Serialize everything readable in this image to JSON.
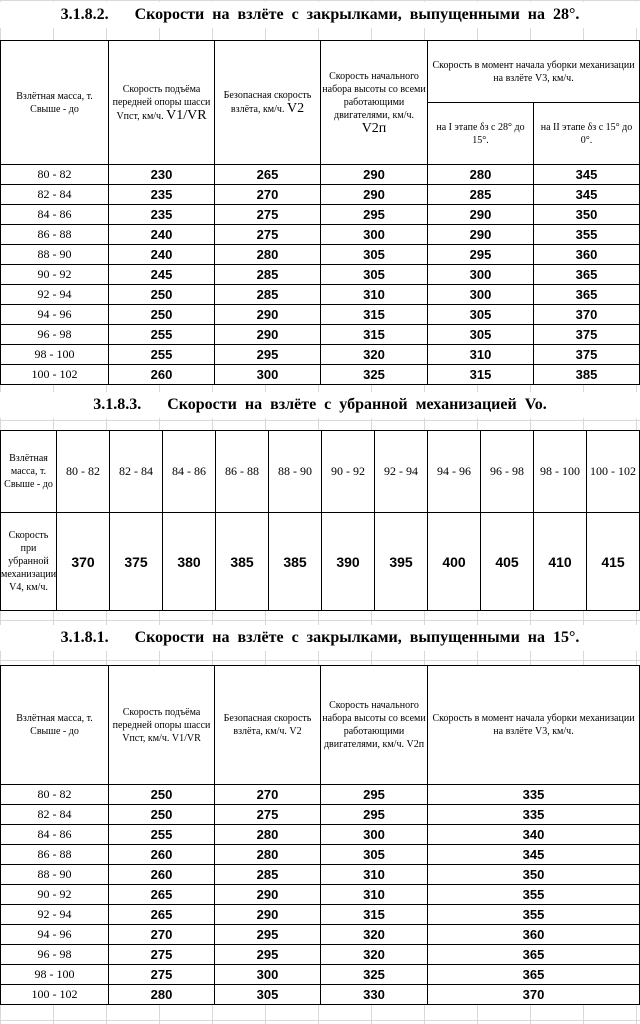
{
  "section1": {
    "number": "3.1.8.2.",
    "title": "Скорости на взлёте с закрылками, выпущенными на 28°.",
    "headers": {
      "mass": "Взлётная масса, т. Свыше - до",
      "v1": "Скорость подъёма передней опоры шасси Vпст, км/ч.",
      "v1_sym": "V1/VR",
      "v2": "Безопасная скорость взлёта, км/ч.",
      "v2_sym": "V2",
      "v2p": "Скорость начального набора высоты со всеми работающими двигателями, км/ч.",
      "v2p_sym": "V2п",
      "v3_group": "Скорость в момент начала уборки механизации на взлёте V3, км/ч.",
      "v3a": "на I этапе δз с 28° до 15°.",
      "v3b": "на II этапе δз с 15° до 0°."
    },
    "rows": [
      {
        "mass": "80 - 82",
        "v1": "230",
        "v2": "265",
        "v2p": "290",
        "v3a": "280",
        "v3b": "345"
      },
      {
        "mass": "82 - 84",
        "v1": "235",
        "v2": "270",
        "v2p": "290",
        "v3a": "285",
        "v3b": "345"
      },
      {
        "mass": "84 - 86",
        "v1": "235",
        "v2": "275",
        "v2p": "295",
        "v3a": "290",
        "v3b": "350"
      },
      {
        "mass": "86 - 88",
        "v1": "240",
        "v2": "275",
        "v2p": "300",
        "v3a": "290",
        "v3b": "355"
      },
      {
        "mass": "88 - 90",
        "v1": "240",
        "v2": "280",
        "v2p": "305",
        "v3a": "295",
        "v3b": "360"
      },
      {
        "mass": "90 - 92",
        "v1": "245",
        "v2": "285",
        "v2p": "305",
        "v3a": "300",
        "v3b": "365"
      },
      {
        "mass": "92 - 94",
        "v1": "250",
        "v2": "285",
        "v2p": "310",
        "v3a": "300",
        "v3b": "365"
      },
      {
        "mass": "94 - 96",
        "v1": "250",
        "v2": "290",
        "v2p": "315",
        "v3a": "305",
        "v3b": "370"
      },
      {
        "mass": "96 - 98",
        "v1": "255",
        "v2": "290",
        "v2p": "315",
        "v3a": "305",
        "v3b": "375"
      },
      {
        "mass": "98 - 100",
        "v1": "255",
        "v2": "295",
        "v2p": "320",
        "v3a": "310",
        "v3b": "375"
      },
      {
        "mass": "100 - 102",
        "v1": "260",
        "v2": "300",
        "v2p": "325",
        "v3a": "315",
        "v3b": "385"
      }
    ]
  },
  "section2": {
    "number": "3.1.8.3.",
    "title": "Скорости на взлёте с убранной механизацией Vo.",
    "mass_label": "Взлётная масса, т. Свыше - до",
    "speed_label": "Скорость при убранной механизации V4, км/ч.",
    "masses": [
      "80 - 82",
      "82 - 84",
      "84 - 86",
      "86 - 88",
      "88 - 90",
      "90 - 92",
      "92 - 94",
      "94 - 96",
      "96 - 98",
      "98 - 100",
      "100 - 102"
    ],
    "speeds": [
      "370",
      "375",
      "380",
      "385",
      "385",
      "390",
      "395",
      "400",
      "405",
      "410",
      "415"
    ]
  },
  "section3": {
    "number": "3.1.8.1.",
    "title": "Скорости на взлёте с закрылками, выпущенными на 15°.",
    "headers": {
      "mass": "Взлётная масса, т. Свыше - до",
      "v1": "Скорость подъёма передней опоры шасси Vпст, км/ч.",
      "v1_sym": "V1/VR",
      "v2": "Безопасная скорость взлёта, км/ч.",
      "v2_sym": "V2",
      "v2p": "Скорость начального набора высоты со всеми работающими двигателями, км/ч.",
      "v2p_sym": "V2п",
      "v3": "Скорость в момент начала уборки механизации на взлёте V3, км/ч."
    },
    "rows": [
      {
        "mass": "80 - 82",
        "v1": "250",
        "v2": "270",
        "v2p": "295",
        "v3": "335"
      },
      {
        "mass": "82 - 84",
        "v1": "250",
        "v2": "275",
        "v2p": "295",
        "v3": "335"
      },
      {
        "mass": "84 - 86",
        "v1": "255",
        "v2": "280",
        "v2p": "300",
        "v3": "340"
      },
      {
        "mass": "86 - 88",
        "v1": "260",
        "v2": "280",
        "v2p": "305",
        "v3": "345"
      },
      {
        "mass": "88 - 90",
        "v1": "260",
        "v2": "285",
        "v2p": "310",
        "v3": "350"
      },
      {
        "mass": "90 - 92",
        "v1": "265",
        "v2": "290",
        "v2p": "310",
        "v3": "355"
      },
      {
        "mass": "92 - 94",
        "v1": "265",
        "v2": "290",
        "v2p": "315",
        "v3": "355"
      },
      {
        "mass": "94 - 96",
        "v1": "270",
        "v2": "295",
        "v2p": "320",
        "v3": "360"
      },
      {
        "mass": "96 - 98",
        "v1": "275",
        "v2": "295",
        "v2p": "320",
        "v3": "365"
      },
      {
        "mass": "98 - 100",
        "v1": "275",
        "v2": "300",
        "v2p": "325",
        "v3": "365"
      },
      {
        "mass": "100 - 102",
        "v1": "280",
        "v2": "305",
        "v2p": "330",
        "v3": "370"
      }
    ]
  }
}
